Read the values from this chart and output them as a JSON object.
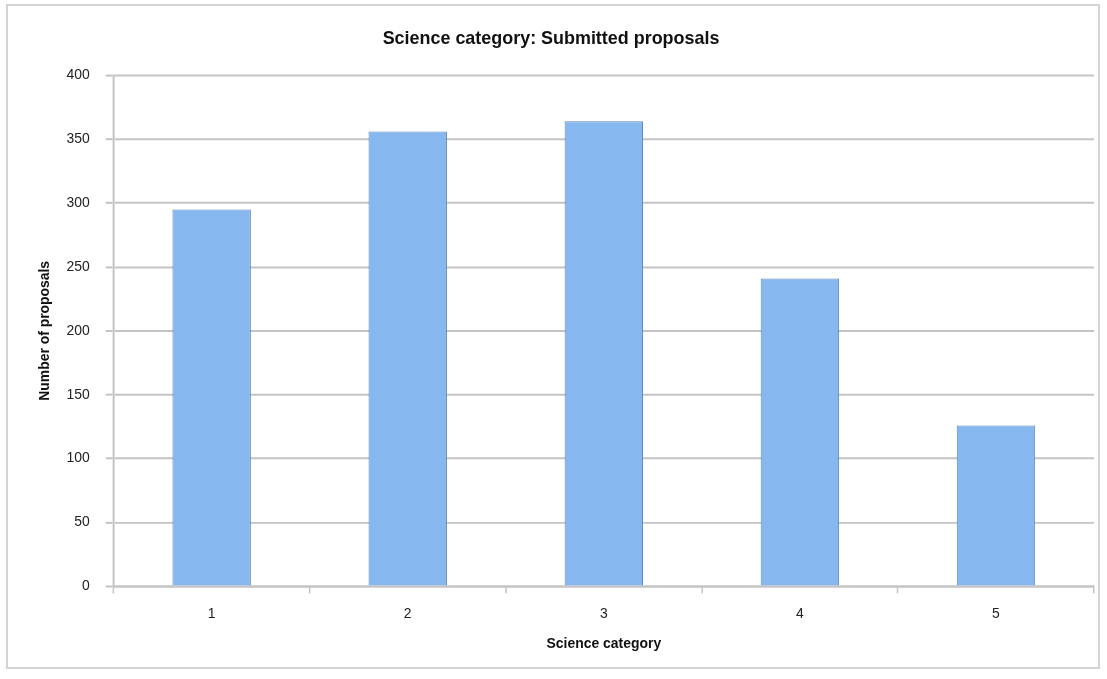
{
  "chart_data": {
    "type": "bar",
    "title": "Science category: Submitted proposals",
    "xlabel": "Science category",
    "ylabel": "Number of proposals",
    "categories": [
      "1",
      "2",
      "3",
      "4",
      "5"
    ],
    "values": [
      295,
      356,
      364,
      241,
      126
    ],
    "color": "#86b7ef",
    "ylim": [
      0,
      400
    ],
    "yticks": [
      0,
      50,
      100,
      150,
      200,
      250,
      300,
      350,
      400
    ],
    "grid": "y"
  }
}
